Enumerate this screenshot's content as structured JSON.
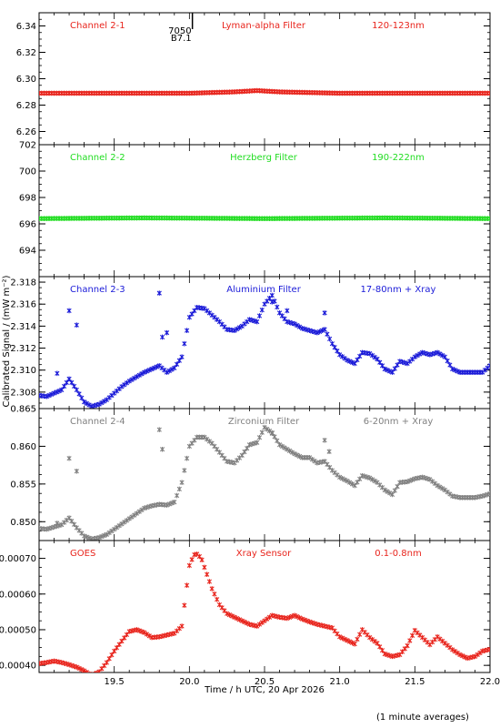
{
  "figure": {
    "xlabel": "Time / h UTC, 20 Apr 2026",
    "ylabel": "Calibrated Signal / (mW m⁻²)",
    "footnote": "(1 minute averages)",
    "flare_marker": {
      "label_top": "7050",
      "label_bottom": "B7.1",
      "x": 20.02
    }
  },
  "chart_data": [
    {
      "type": "scatter",
      "panel_label": "Channel 2-1",
      "filter": "Lyman-alpha Filter",
      "band": "120-123nm",
      "color": "#e8241c",
      "xlim": [
        19.0,
        22.0
      ],
      "ylim": [
        6.25,
        6.35
      ],
      "yticks": [
        6.26,
        6.28,
        6.3,
        6.32,
        6.34
      ],
      "xticks": [
        19.5,
        20.0,
        20.5,
        21.0,
        21.5,
        22.0
      ],
      "marker": "x",
      "x": [
        19.0,
        20.0,
        20.3,
        20.45,
        20.6,
        21.0,
        22.0
      ],
      "y": [
        6.289,
        6.289,
        6.29,
        6.291,
        6.29,
        6.289,
        6.289
      ]
    },
    {
      "type": "scatter",
      "panel_label": "Channel 2-2",
      "filter": "Herzberg Filter",
      "band": "190-222nm",
      "color": "#22dd22",
      "xlim": [
        19.0,
        22.0
      ],
      "ylim": [
        692,
        702
      ],
      "yticks": [
        694,
        696,
        698,
        700,
        702
      ],
      "xticks": [
        19.5,
        20.0,
        20.5,
        21.0,
        21.5,
        22.0
      ],
      "marker": "x",
      "x": [
        19.0,
        19.7,
        20.5,
        21.3,
        22.0
      ],
      "y": [
        696.4,
        696.45,
        696.4,
        696.45,
        696.4
      ]
    },
    {
      "type": "scatter",
      "panel_label": "Channel 2-3",
      "filter": "Aluminium Filter",
      "band": "17-80nm + Xray",
      "color": "#1a1ad8",
      "xlim": [
        19.0,
        22.0
      ],
      "ylim": [
        2.3065,
        2.3185
      ],
      "yticks": [
        2.308,
        2.31,
        2.312,
        2.314,
        2.316,
        2.318
      ],
      "xticks": [
        19.5,
        20.0,
        20.5,
        21.0,
        21.5,
        22.0
      ],
      "marker": "x",
      "x": [
        19.0,
        19.05,
        19.1,
        19.15,
        19.2,
        19.25,
        19.3,
        19.35,
        19.4,
        19.45,
        19.5,
        19.55,
        19.6,
        19.65,
        19.7,
        19.75,
        19.8,
        19.85,
        19.9,
        19.95,
        20.0,
        20.05,
        20.1,
        20.15,
        20.2,
        20.25,
        20.3,
        20.35,
        20.4,
        20.45,
        20.5,
        20.55,
        20.6,
        20.65,
        20.7,
        20.75,
        20.8,
        20.85,
        20.9,
        20.95,
        21.0,
        21.05,
        21.1,
        21.15,
        21.2,
        21.25,
        21.3,
        21.35,
        21.4,
        21.45,
        21.5,
        21.55,
        21.6,
        21.65,
        21.7,
        21.75,
        21.8,
        21.85,
        21.9,
        21.95,
        22.0
      ],
      "y": [
        2.3077,
        2.3076,
        2.3079,
        2.3082,
        2.3092,
        2.3082,
        2.3071,
        2.3067,
        2.3069,
        2.3073,
        2.3079,
        2.3085,
        2.309,
        2.3094,
        2.3098,
        2.3101,
        2.3104,
        2.3098,
        2.3102,
        2.3112,
        2.3148,
        2.3157,
        2.3156,
        2.315,
        2.3144,
        2.3137,
        2.3136,
        2.314,
        2.3146,
        2.3144,
        2.316,
        2.3168,
        2.3152,
        2.3144,
        2.3142,
        2.3138,
        2.3136,
        2.3134,
        2.3137,
        2.3124,
        2.3114,
        2.3109,
        2.3106,
        2.3116,
        2.3115,
        2.311,
        2.3101,
        2.3098,
        2.3108,
        2.3106,
        2.3112,
        2.3116,
        2.3114,
        2.3116,
        2.3112,
        2.3101,
        2.3098,
        2.3098,
        2.3098,
        2.3098,
        2.3104
      ],
      "outliers_x": [
        19.2,
        19.25,
        19.12,
        19.8,
        19.85,
        19.82,
        20.65,
        20.9,
        20.55
      ],
      "outliers_y": [
        2.3154,
        2.3141,
        2.3097,
        2.317,
        2.3134,
        2.313,
        2.3154,
        2.3152,
        2.3162
      ]
    },
    {
      "type": "scatter",
      "panel_label": "Channel 2-4",
      "filter": "Zirconium Filter",
      "band": "6-20nm + Xray",
      "color": "#808080",
      "xlim": [
        19.0,
        22.0
      ],
      "ylim": [
        0.8475,
        0.865
      ],
      "yticks": [
        0.85,
        0.855,
        0.86,
        0.865
      ],
      "xticks": [
        19.5,
        20.0,
        20.5,
        21.0,
        21.5,
        22.0
      ],
      "marker": "x",
      "x": [
        19.0,
        19.05,
        19.1,
        19.15,
        19.2,
        19.25,
        19.3,
        19.35,
        19.4,
        19.45,
        19.5,
        19.55,
        19.6,
        19.65,
        19.7,
        19.75,
        19.8,
        19.85,
        19.9,
        19.95,
        20.0,
        20.05,
        20.1,
        20.15,
        20.2,
        20.25,
        20.3,
        20.35,
        20.4,
        20.45,
        20.5,
        20.55,
        20.6,
        20.65,
        20.7,
        20.75,
        20.8,
        20.85,
        20.9,
        20.95,
        21.0,
        21.05,
        21.1,
        21.15,
        21.2,
        21.25,
        21.3,
        21.35,
        21.4,
        21.45,
        21.5,
        21.55,
        21.6,
        21.65,
        21.7,
        21.75,
        21.8,
        21.85,
        21.9,
        21.95,
        22.0
      ],
      "y": [
        0.8491,
        0.849,
        0.8493,
        0.8496,
        0.8505,
        0.8492,
        0.8481,
        0.8477,
        0.8479,
        0.8483,
        0.849,
        0.8497,
        0.8504,
        0.8511,
        0.8518,
        0.8521,
        0.8523,
        0.8522,
        0.8526,
        0.8552,
        0.86,
        0.8612,
        0.8612,
        0.8604,
        0.8592,
        0.858,
        0.8578,
        0.8588,
        0.8602,
        0.8605,
        0.8625,
        0.8618,
        0.8602,
        0.8596,
        0.859,
        0.8585,
        0.8585,
        0.8578,
        0.858,
        0.8568,
        0.8559,
        0.8554,
        0.8548,
        0.8561,
        0.8558,
        0.8552,
        0.8542,
        0.8536,
        0.8552,
        0.8553,
        0.8557,
        0.8559,
        0.8556,
        0.8548,
        0.8542,
        0.8534,
        0.8532,
        0.8532,
        0.8532,
        0.8534,
        0.8537
      ],
      "outliers_x": [
        19.2,
        19.12,
        19.25,
        19.8,
        19.82,
        20.55,
        20.9,
        20.93
      ],
      "outliers_y": [
        0.8584,
        0.8498,
        0.8567,
        0.8622,
        0.8596,
        0.8617,
        0.8608,
        0.8593
      ]
    },
    {
      "type": "scatter",
      "panel_label": "GOES",
      "filter": "Xray Sensor",
      "band": "0.1-0.8nm",
      "color": "#e8241c",
      "xlim": [
        19.0,
        22.0
      ],
      "ylim": [
        0.00038,
        0.00075
      ],
      "yticks": [
        0.0004,
        0.0005,
        0.0006,
        0.0007
      ],
      "xticks": [
        19.5,
        20.0,
        20.5,
        21.0,
        21.5,
        22.0
      ],
      "marker": "x",
      "x": [
        19.0,
        19.05,
        19.1,
        19.15,
        19.2,
        19.25,
        19.3,
        19.35,
        19.4,
        19.45,
        19.5,
        19.55,
        19.6,
        19.65,
        19.7,
        19.75,
        19.8,
        19.85,
        19.9,
        19.95,
        19.97,
        20.0,
        20.03,
        20.05,
        20.08,
        20.1,
        20.15,
        20.2,
        20.25,
        20.3,
        20.35,
        20.4,
        20.45,
        20.5,
        20.55,
        20.6,
        20.65,
        20.7,
        20.75,
        20.8,
        20.85,
        20.9,
        20.95,
        21.0,
        21.05,
        21.1,
        21.15,
        21.2,
        21.25,
        21.3,
        21.35,
        21.4,
        21.45,
        21.5,
        21.55,
        21.6,
        21.65,
        21.7,
        21.75,
        21.8,
        21.85,
        21.9,
        21.95,
        22.0
      ],
      "y": [
        0.000405,
        0.000408,
        0.000412,
        0.000408,
        0.000402,
        0.000395,
        0.000385,
        0.000372,
        0.000382,
        0.000408,
        0.00044,
        0.000468,
        0.000495,
        0.0005,
        0.000492,
        0.000478,
        0.00048,
        0.000485,
        0.00049,
        0.00051,
        0.00058,
        0.00068,
        0.00071,
        0.000712,
        0.0007,
        0.000675,
        0.000615,
        0.00057,
        0.000545,
        0.000535,
        0.000525,
        0.000515,
        0.00051,
        0.000525,
        0.00054,
        0.000535,
        0.000532,
        0.00054,
        0.00053,
        0.000522,
        0.000515,
        0.00051,
        0.000505,
        0.00048,
        0.00047,
        0.00046,
        0.0005,
        0.000478,
        0.000462,
        0.000432,
        0.000425,
        0.00043,
        0.000455,
        0.000498,
        0.000478,
        0.000458,
        0.00048,
        0.000462,
        0.000444,
        0.00043,
        0.00042,
        0.000425,
        0.00044,
        0.000445
      ]
    }
  ]
}
